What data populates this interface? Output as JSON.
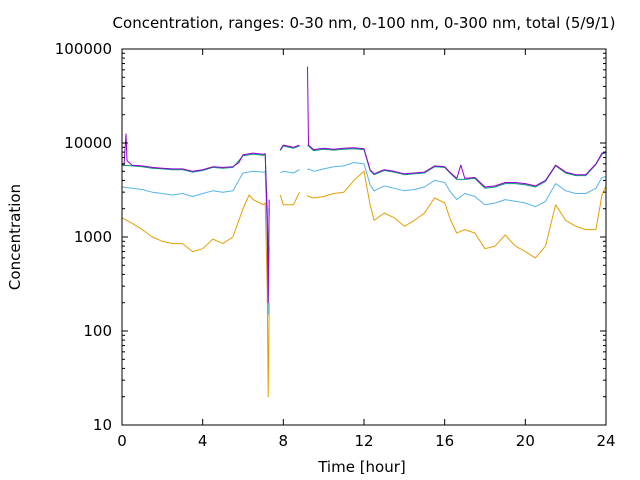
{
  "chart_data": {
    "type": "line",
    "title": "Concentration, ranges: 0-30 nm, 0-100 nm, 0-300 nm, total (5/9/1)",
    "xlabel": "Time [hour]",
    "ylabel": "Concentration",
    "xlim": [
      0,
      24
    ],
    "ylim": [
      10,
      100000
    ],
    "yscale": "log",
    "grid": false,
    "x_ticks": [
      "0",
      "4",
      "8",
      "12",
      "16",
      "20",
      "24"
    ],
    "y_ticks": [
      "10",
      "100",
      "1000",
      "10000",
      "100000"
    ],
    "series": [
      {
        "color": "#9400d3",
        "points": [
          [
            0.0,
            6000
          ],
          [
            0.1,
            5800
          ],
          [
            0.2,
            12500
          ],
          [
            0.25,
            6500
          ],
          [
            0.5,
            5800
          ],
          [
            1,
            5700
          ],
          [
            1.5,
            5500
          ],
          [
            2,
            5400
          ],
          [
            2.5,
            5300
          ],
          [
            3,
            5300
          ],
          [
            3.5,
            5000
          ],
          [
            4,
            5200
          ],
          [
            4.5,
            5600
          ],
          [
            5,
            5500
          ],
          [
            5.5,
            5600
          ],
          [
            5.8,
            6200
          ],
          [
            6,
            7500
          ],
          [
            6.5,
            7800
          ],
          [
            7,
            7600
          ],
          [
            7.1,
            7700
          ],
          [
            7.2,
            1500
          ],
          [
            7.25,
            200
          ],
          [
            7.3,
            2500
          ],
          [
            7.35,
            null
          ],
          [
            7.8,
            null
          ],
          [
            7.85,
            8500
          ],
          [
            8,
            9500
          ],
          [
            8.5,
            9000
          ],
          [
            8.8,
            9500
          ],
          [
            8.85,
            null
          ],
          [
            9.1,
            null
          ],
          [
            9.2,
            65000
          ],
          [
            9.25,
            9500
          ],
          [
            9.5,
            8500
          ],
          [
            10,
            8800
          ],
          [
            10.5,
            8600
          ],
          [
            11,
            8800
          ],
          [
            11.5,
            8900
          ],
          [
            12,
            8700
          ],
          [
            12.3,
            5200
          ],
          [
            12.5,
            4700
          ],
          [
            13,
            5200
          ],
          [
            13.5,
            5000
          ],
          [
            14,
            4700
          ],
          [
            14.5,
            4800
          ],
          [
            15,
            4900
          ],
          [
            15.5,
            5700
          ],
          [
            16,
            5600
          ],
          [
            16.3,
            4800
          ],
          [
            16.6,
            4200
          ],
          [
            16.8,
            5800
          ],
          [
            17,
            4200
          ],
          [
            17.5,
            4300
          ],
          [
            18,
            3400
          ],
          [
            18.5,
            3500
          ],
          [
            19,
            3800
          ],
          [
            19.5,
            3800
          ],
          [
            20,
            3700
          ],
          [
            20.5,
            3500
          ],
          [
            21,
            4000
          ],
          [
            21.5,
            5800
          ],
          [
            22,
            4900
          ],
          [
            22.5,
            4600
          ],
          [
            23,
            4600
          ],
          [
            23.5,
            6000
          ],
          [
            23.8,
            7800
          ],
          [
            24,
            8000
          ]
        ]
      },
      {
        "color": "#009e73",
        "points": [
          [
            0.0,
            5800
          ],
          [
            0.5,
            5700
          ],
          [
            1,
            5600
          ],
          [
            1.5,
            5400
          ],
          [
            2,
            5300
          ],
          [
            2.5,
            5200
          ],
          [
            3,
            5200
          ],
          [
            3.5,
            4900
          ],
          [
            4,
            5100
          ],
          [
            4.5,
            5500
          ],
          [
            5,
            5400
          ],
          [
            5.5,
            5500
          ],
          [
            6,
            7300
          ],
          [
            6.5,
            7600
          ],
          [
            7,
            7400
          ],
          [
            7.1,
            7600
          ],
          [
            7.2,
            2000
          ],
          [
            7.25,
            400
          ],
          [
            7.3,
            2000
          ],
          [
            7.35,
            null
          ],
          [
            7.8,
            null
          ],
          [
            7.85,
            8300
          ],
          [
            8,
            9300
          ],
          [
            8.5,
            8800
          ],
          [
            8.8,
            9300
          ],
          [
            8.85,
            null
          ],
          [
            9.1,
            null
          ],
          [
            9.2,
            9500
          ],
          [
            9.25,
            9300
          ],
          [
            9.5,
            8300
          ],
          [
            10,
            8600
          ],
          [
            10.5,
            8400
          ],
          [
            11,
            8600
          ],
          [
            11.5,
            8700
          ],
          [
            12,
            8500
          ],
          [
            12.3,
            5100
          ],
          [
            12.5,
            4600
          ],
          [
            13,
            5100
          ],
          [
            13.5,
            4900
          ],
          [
            14,
            4600
          ],
          [
            14.5,
            4700
          ],
          [
            15,
            4800
          ],
          [
            15.5,
            5600
          ],
          [
            16,
            5500
          ],
          [
            16.3,
            4700
          ],
          [
            16.6,
            4100
          ],
          [
            17,
            4100
          ],
          [
            17.5,
            4200
          ],
          [
            18,
            3300
          ],
          [
            18.5,
            3400
          ],
          [
            19,
            3700
          ],
          [
            19.5,
            3700
          ],
          [
            20,
            3600
          ],
          [
            20.5,
            3400
          ],
          [
            21,
            3900
          ],
          [
            21.5,
            5700
          ],
          [
            22,
            4800
          ],
          [
            22.5,
            4500
          ],
          [
            23,
            4500
          ],
          [
            23.5,
            5900
          ],
          [
            23.8,
            7600
          ],
          [
            24,
            7900
          ]
        ]
      },
      {
        "color": "#56b4e9",
        "points": [
          [
            0.0,
            3400
          ],
          [
            0.5,
            3300
          ],
          [
            1,
            3200
          ],
          [
            1.5,
            3000
          ],
          [
            2,
            2900
          ],
          [
            2.5,
            2800
          ],
          [
            3,
            2900
          ],
          [
            3.5,
            2700
          ],
          [
            4,
            2900
          ],
          [
            4.5,
            3100
          ],
          [
            5,
            3000
          ],
          [
            5.5,
            3100
          ],
          [
            6,
            4800
          ],
          [
            6.5,
            5000
          ],
          [
            7,
            4900
          ],
          [
            7.1,
            5000
          ],
          [
            7.2,
            1200
          ],
          [
            7.25,
            150
          ],
          [
            7.3,
            800
          ],
          [
            7.35,
            null
          ],
          [
            7.8,
            null
          ],
          [
            7.85,
            4800
          ],
          [
            8,
            5000
          ],
          [
            8.5,
            4800
          ],
          [
            8.8,
            5200
          ],
          [
            8.85,
            null
          ],
          [
            9.1,
            null
          ],
          [
            9.2,
            5200
          ],
          [
            9.25,
            5300
          ],
          [
            9.5,
            5000
          ],
          [
            10,
            5300
          ],
          [
            10.5,
            5600
          ],
          [
            11,
            5700
          ],
          [
            11.5,
            6200
          ],
          [
            12,
            6000
          ],
          [
            12.3,
            3600
          ],
          [
            12.5,
            3100
          ],
          [
            13,
            3500
          ],
          [
            13.5,
            3300
          ],
          [
            14,
            3100
          ],
          [
            14.5,
            3200
          ],
          [
            15,
            3400
          ],
          [
            15.5,
            4000
          ],
          [
            16,
            3800
          ],
          [
            16.3,
            3000
          ],
          [
            16.6,
            2500
          ],
          [
            17,
            2900
          ],
          [
            17.5,
            2700
          ],
          [
            18,
            2200
          ],
          [
            18.5,
            2300
          ],
          [
            19,
            2500
          ],
          [
            19.5,
            2400
          ],
          [
            20,
            2300
          ],
          [
            20.5,
            2100
          ],
          [
            21,
            2400
          ],
          [
            21.5,
            3700
          ],
          [
            22,
            3100
          ],
          [
            22.5,
            2900
          ],
          [
            23,
            2900
          ],
          [
            23.5,
            3300
          ],
          [
            23.8,
            4300
          ],
          [
            24,
            4400
          ]
        ]
      },
      {
        "color": "#e69f00",
        "points": [
          [
            0.0,
            1600
          ],
          [
            0.5,
            1400
          ],
          [
            1,
            1200
          ],
          [
            1.5,
            1000
          ],
          [
            2,
            900
          ],
          [
            2.5,
            850
          ],
          [
            3,
            850
          ],
          [
            3.5,
            700
          ],
          [
            4,
            750
          ],
          [
            4.5,
            950
          ],
          [
            5,
            850
          ],
          [
            5.5,
            1000
          ],
          [
            6,
            2000
          ],
          [
            6.3,
            2800
          ],
          [
            6.5,
            2500
          ],
          [
            7,
            2200
          ],
          [
            7.1,
            2300
          ],
          [
            7.2,
            300
          ],
          [
            7.25,
            20
          ],
          [
            7.3,
            200
          ],
          [
            7.35,
            null
          ],
          [
            7.8,
            null
          ],
          [
            7.85,
            2800
          ],
          [
            8,
            2200
          ],
          [
            8.5,
            2200
          ],
          [
            8.8,
            3000
          ],
          [
            8.85,
            null
          ],
          [
            9.1,
            null
          ],
          [
            9.2,
            2800
          ],
          [
            9.25,
            2700
          ],
          [
            9.5,
            2600
          ],
          [
            10,
            2700
          ],
          [
            10.5,
            2900
          ],
          [
            11,
            3000
          ],
          [
            11.5,
            4000
          ],
          [
            12,
            5000
          ],
          [
            12.3,
            2200
          ],
          [
            12.5,
            1500
          ],
          [
            13,
            1800
          ],
          [
            13.5,
            1600
          ],
          [
            14,
            1300
          ],
          [
            14.5,
            1500
          ],
          [
            15,
            1800
          ],
          [
            15.5,
            2600
          ],
          [
            16,
            2300
          ],
          [
            16.3,
            1500
          ],
          [
            16.6,
            1100
          ],
          [
            17,
            1200
          ],
          [
            17.5,
            1100
          ],
          [
            18,
            750
          ],
          [
            18.5,
            800
          ],
          [
            19,
            1050
          ],
          [
            19.5,
            800
          ],
          [
            20,
            700
          ],
          [
            20.5,
            600
          ],
          [
            21,
            800
          ],
          [
            21.5,
            2200
          ],
          [
            22,
            1500
          ],
          [
            22.5,
            1300
          ],
          [
            23,
            1200
          ],
          [
            23.5,
            1200
          ],
          [
            23.8,
            2800
          ],
          [
            24,
            3500
          ]
        ]
      }
    ]
  }
}
